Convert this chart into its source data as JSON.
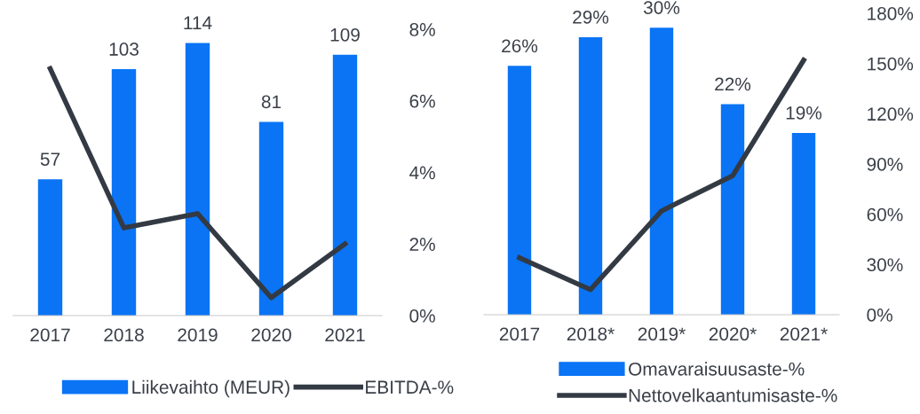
{
  "chart_data": [
    {
      "type": "bar",
      "categories": [
        "2017",
        "2018",
        "2019",
        "2020",
        "2021"
      ],
      "y2lim": [
        0,
        8
      ],
      "y2ticks": [
        {
          "value": 0,
          "label": "0%"
        },
        {
          "value": 2,
          "label": "2%"
        },
        {
          "value": 4,
          "label": "4%"
        },
        {
          "value": 6,
          "label": "6%"
        },
        {
          "value": 8,
          "label": "8%"
        }
      ],
      "legend": "bottom",
      "grid": false,
      "series": [
        {
          "name": "Liikevaihto (MEUR)",
          "color": "#0a74f5",
          "values": [
            57,
            103,
            114,
            81,
            109
          ],
          "value_labels": [
            "57",
            "103",
            "114",
            "81",
            "109"
          ]
        },
        {
          "name": "EBITDA-%",
          "type": "line",
          "axis": "y2",
          "color": "#333a44",
          "values": [
            6.9,
            2.45,
            2.85,
            0.5,
            2.0
          ]
        }
      ]
    },
    {
      "type": "bar",
      "categories": [
        "2017",
        "2018*",
        "2019*",
        "2020*",
        "2021*"
      ],
      "y2lim": [
        0,
        180
      ],
      "y2ticks": [
        {
          "value": 0,
          "label": "0%"
        },
        {
          "value": 30,
          "label": "30%"
        },
        {
          "value": 60,
          "label": "60%"
        },
        {
          "value": 90,
          "label": "90%"
        },
        {
          "value": 120,
          "label": "120%"
        },
        {
          "value": 150,
          "label": "150%"
        },
        {
          "value": 180,
          "label": "180%"
        }
      ],
      "legend": "bottom",
      "grid": false,
      "series": [
        {
          "name": "Omavaraisuusaste-%",
          "color": "#0a74f5",
          "values": [
            26,
            29,
            30,
            22,
            19
          ],
          "value_labels": [
            "26%",
            "29%",
            "30%",
            "22%",
            "19%"
          ]
        },
        {
          "name": "Nettovelkaantumisaste-%",
          "type": "line",
          "axis": "y2",
          "color": "#333a44",
          "values": [
            34,
            15,
            62,
            83,
            152
          ]
        }
      ]
    }
  ]
}
